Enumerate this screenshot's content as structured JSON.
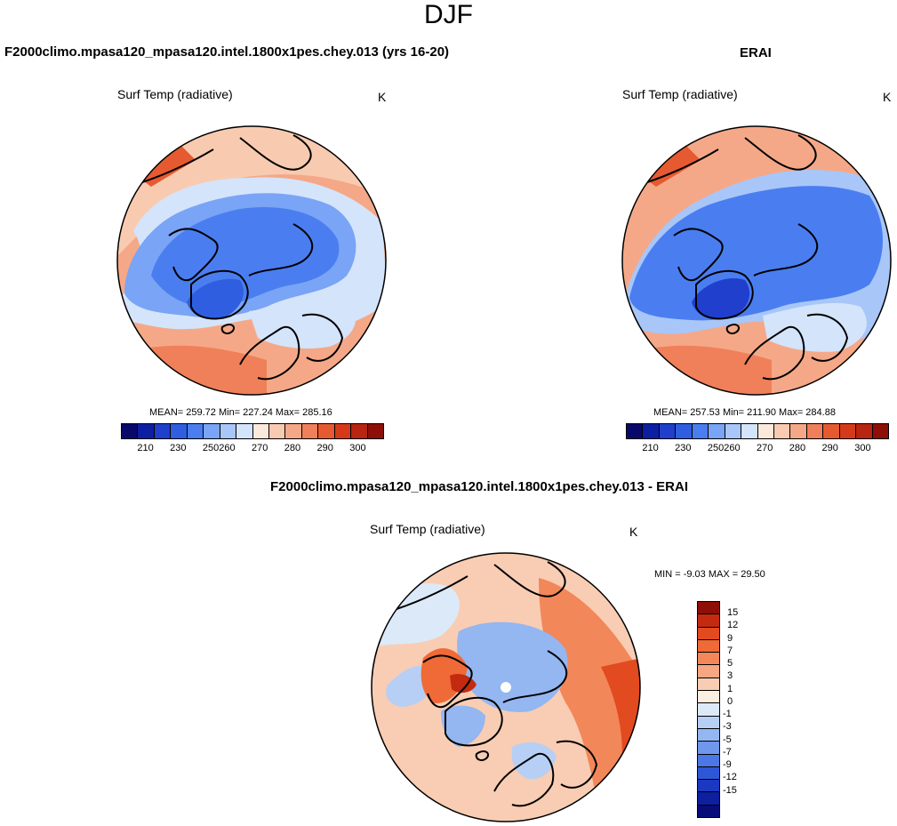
{
  "figure": {
    "title": "DJF",
    "variable_label": "Surf Temp (radiative)",
    "unit": "K"
  },
  "panels": {
    "model": {
      "title": "F2000climo.mpasa120_mpasa120.intel.1800x1pes.chey.013 (yrs 16-20)",
      "stats": "MEAN= 259.72  Min= 227.24  Max= 285.16"
    },
    "obs": {
      "title": "ERAI",
      "stats": "MEAN= 257.53  Min= 211.90  Max= 284.88"
    },
    "diff": {
      "title": "F2000climo.mpasa120_mpasa120.intel.1800x1pes.chey.013 - ERAI",
      "stats": "MIN =  -9.03 MAX =  29.50"
    }
  },
  "abs_colorbar": {
    "colors": [
      "#08086b",
      "#0c1fa3",
      "#1f3fcc",
      "#2f5fe0",
      "#4a7ef0",
      "#7aa4f5",
      "#a8c6f8",
      "#d4e4fb",
      "#fbe9dc",
      "#f8cbb0",
      "#f5a887",
      "#f0805a",
      "#e65a32",
      "#d6391a",
      "#b82510",
      "#8e0f07"
    ],
    "ticks": [
      "210",
      "230",
      "250",
      "260",
      "270",
      "280",
      "290",
      "300"
    ]
  },
  "diff_colorbar": {
    "colors": [
      "#8e0f07",
      "#c42a10",
      "#e24a20",
      "#ef6a36",
      "#f2875a",
      "#f5a683",
      "#f9cdb3",
      "#fdeee2",
      "#dce9f8",
      "#b7cff5",
      "#94b6f1",
      "#6f97ec",
      "#4c77e6",
      "#2e57d8",
      "#1b38c0",
      "#0e1fa0",
      "#080c78"
    ],
    "ticks": [
      "15",
      "12",
      "9",
      "7",
      "5",
      "3",
      "1",
      "0",
      "-1",
      "-3",
      "-5",
      "-7",
      "-9",
      "-12",
      "-15"
    ]
  }
}
